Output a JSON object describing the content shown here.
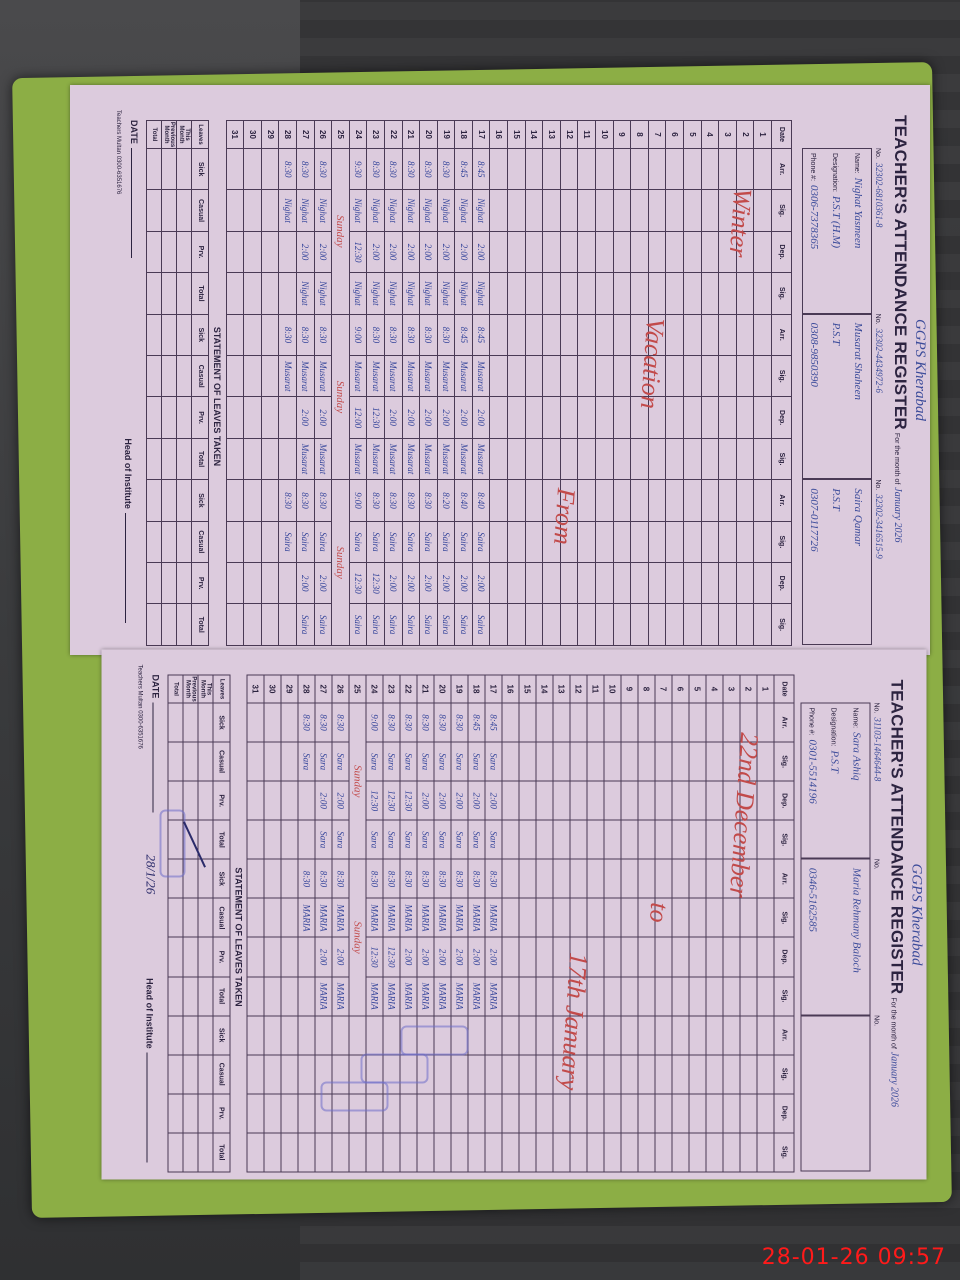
{
  "pages": [
    {
      "school": "GGPS Kherabad",
      "title": "TEACHER'S ATTENDANCE REGISTER",
      "month_label": "For the month of",
      "month": "January 2026",
      "labels": {
        "no": "No.",
        "name": "Name:",
        "designation": "Designation:",
        "phone": "Phone #:"
      },
      "teachers": [
        {
          "no": "32302-6810361-8",
          "name": "Nighat Yasmeen",
          "designation": "P.S.T (H.M)",
          "phone": "0306-7378365"
        },
        {
          "no": "32302-4434972-6",
          "name": "Musarat Shaheen",
          "designation": "P.S.T",
          "phone": "0308-9850390"
        },
        {
          "no": "32302-3416515-9",
          "name": "Saira Qamar",
          "designation": "P.S.T",
          "phone": "0307-0117726"
        }
      ],
      "columns": {
        "date": "Date",
        "cols": [
          "Arr.",
          "Sig.",
          "Dep.",
          "Sig."
        ]
      },
      "dates": [
        "1",
        "2",
        "3",
        "4",
        "5",
        "6",
        "7",
        "8",
        "9",
        "10",
        "11",
        "12",
        "13",
        "14",
        "15",
        "16",
        "17",
        "18",
        "19",
        "20",
        "21",
        "22",
        "23",
        "24",
        "25",
        "26",
        "27",
        "28",
        "29",
        "30",
        "31"
      ],
      "entries": [
        {
          "d": "17",
          "e": [
            [
              "8:45",
              "Nighat",
              "2:00",
              "Nighat"
            ],
            [
              "8:45",
              "Musarat",
              "2:00",
              "Musarat"
            ],
            [
              "8:40",
              "Saira",
              "2:00",
              "Saira"
            ]
          ]
        },
        {
          "d": "18",
          "e": [
            [
              "8:45",
              "Nighat",
              "2:00",
              "Nighat"
            ],
            [
              "8:45",
              "Musarat",
              "2:00",
              "Musarat"
            ],
            [
              "8:40",
              "Saira",
              "2:00",
              "Saira"
            ]
          ]
        },
        {
          "d": "19",
          "e": [
            [
              "8:30",
              "Nighat",
              "2:00",
              "Nighat"
            ],
            [
              "8:30",
              "Musarat",
              "2:00",
              "Musarat"
            ],
            [
              "8:20",
              "Saira",
              "2:00",
              "Saira"
            ]
          ]
        },
        {
          "d": "20",
          "e": [
            [
              "8:30",
              "Nighat",
              "2:00",
              "Nighat"
            ],
            [
              "8:30",
              "Musarat",
              "2:00",
              "Musarat"
            ],
            [
              "8:30",
              "Saira",
              "2:00",
              "Saira"
            ]
          ]
        },
        {
          "d": "21",
          "e": [
            [
              "8:30",
              "Nighat",
              "2:00",
              "Nighat"
            ],
            [
              "8:30",
              "Musarat",
              "2:00",
              "Musarat"
            ],
            [
              "8:30",
              "Saira",
              "2:00",
              "Saira"
            ]
          ]
        },
        {
          "d": "22",
          "e": [
            [
              "8:30",
              "Nighat",
              "2:00",
              "Nighat"
            ],
            [
              "8:30",
              "Musarat",
              "2:00",
              "Musarat"
            ],
            [
              "8:30",
              "Saira",
              "2:00",
              "Saira"
            ]
          ]
        },
        {
          "d": "23",
          "e": [
            [
              "8:30",
              "Nighat",
              "2:00",
              "Nighat"
            ],
            [
              "8:30",
              "Musarat",
              "12:30",
              "Musarat"
            ],
            [
              "8:30",
              "Saira",
              "12:30",
              "Saira"
            ]
          ]
        },
        {
          "d": "24",
          "e": [
            [
              "9:30",
              "Nighat",
              "12:30",
              "Nighat"
            ],
            [
              "9:00",
              "Musarat",
              "12:00",
              "Musarat"
            ],
            [
              "9:00",
              "Saira",
              "12:30",
              "Saira"
            ]
          ]
        },
        {
          "d": "25",
          "e": [
            [
              "Sunday"
            ],
            [
              "Sunday"
            ],
            [
              "Sunday"
            ]
          ]
        },
        {
          "d": "26",
          "e": [
            [
              "8:30",
              "Nighat",
              "2:00",
              "Nighat"
            ],
            [
              "8:30",
              "Musarat",
              "2:00",
              "Musarat"
            ],
            [
              "8:30",
              "Saira",
              "2:00",
              "Saira"
            ]
          ]
        },
        {
          "d": "27",
          "e": [
            [
              "8:30",
              "Nighat",
              "2:00",
              "Nighat"
            ],
            [
              "8:30",
              "Musarat",
              "2:00",
              "Musarat"
            ],
            [
              "8:30",
              "Saira",
              "2:00",
              "Saira"
            ]
          ]
        },
        {
          "d": "28",
          "e": [
            [
              "8:30",
              "Nighat",
              "",
              ""
            ],
            [
              "8:30",
              "Musarat",
              "",
              ""
            ],
            [
              "8:30",
              "Saira",
              "",
              ""
            ]
          ]
        }
      ],
      "vacation_note": [
        "Winter",
        "Vacation",
        "From"
      ],
      "statement_title": "STATEMENT OF LEAVES TAKEN",
      "leaves": {
        "rows": [
          "Leaves",
          "This Month",
          "Previous Month",
          "Total"
        ],
        "cols": [
          "Sick",
          "Casual",
          "Prv.",
          "Total"
        ]
      },
      "footer": {
        "date": "DATE",
        "head": "Head of Institute",
        "printer": "Teachers Multan 0300-6351676"
      }
    },
    {
      "school": "GGPS Kherabad",
      "title": "TEACHER'S ATTENDANCE REGISTER",
      "month_label": "For the month of",
      "month": "January 2026",
      "labels": {
        "no": "No.",
        "name": "Name:",
        "designation": "Designation:",
        "phone": "Phone #:"
      },
      "teachers": [
        {
          "no": "31103-1464644-8",
          "name": "Sara Ashiq",
          "designation": "P.S.T",
          "phone": "0301-5514196"
        },
        {
          "no": "",
          "name": "Maria Rehmany Baloch",
          "designation": "",
          "phone": "0346-5162585"
        },
        {
          "no": "",
          "name": "",
          "designation": "",
          "phone": ""
        }
      ],
      "columns": {
        "date": "Date",
        "cols": [
          "Arr.",
          "Sig.",
          "Dep.",
          "Sig."
        ]
      },
      "dates": [
        "1",
        "2",
        "3",
        "4",
        "5",
        "6",
        "7",
        "8",
        "9",
        "10",
        "11",
        "12",
        "13",
        "14",
        "15",
        "16",
        "17",
        "18",
        "19",
        "20",
        "21",
        "22",
        "23",
        "24",
        "25",
        "26",
        "27",
        "28",
        "29",
        "30",
        "31"
      ],
      "entries": [
        {
          "d": "17",
          "e": [
            [
              "8:45",
              "Sara",
              "2:00",
              "Sara"
            ],
            [
              "8:30",
              "MARIA",
              "2:00",
              "MARIA"
            ]
          ]
        },
        {
          "d": "18",
          "e": [
            [
              "8:45",
              "Sara",
              "2:00",
              "Sara"
            ],
            [
              "8:30",
              "MARIA",
              "2:00",
              "MARIA"
            ]
          ]
        },
        {
          "d": "19",
          "e": [
            [
              "8:30",
              "Sara",
              "2:00",
              "Sara"
            ],
            [
              "8:30",
              "MARIA",
              "2:00",
              "MARIA"
            ]
          ]
        },
        {
          "d": "20",
          "e": [
            [
              "8:30",
              "Sara",
              "2:00",
              "Sara"
            ],
            [
              "8:30",
              "MARIA",
              "2:00",
              "MARIA"
            ]
          ]
        },
        {
          "d": "21",
          "e": [
            [
              "8:30",
              "Sara",
              "2:00",
              "Sara"
            ],
            [
              "8:30",
              "MARIA",
              "2:00",
              "MARIA"
            ]
          ]
        },
        {
          "d": "22",
          "e": [
            [
              "8:30",
              "Sara",
              "12:30",
              "Sara"
            ],
            [
              "8:30",
              "MARIA",
              "2:00",
              "MARIA"
            ]
          ]
        },
        {
          "d": "23",
          "e": [
            [
              "8:30",
              "Sara",
              "12:30",
              "Sara"
            ],
            [
              "8:30",
              "MARIA",
              "12:30",
              "MARIA"
            ]
          ]
        },
        {
          "d": "24",
          "e": [
            [
              "9:00",
              "Sara",
              "12:30",
              "Sara"
            ],
            [
              "8:30",
              "MARIA",
              "12:30",
              "MARIA"
            ]
          ]
        },
        {
          "d": "25",
          "e": [
            [
              "Sunday"
            ],
            [
              "Sunday"
            ]
          ]
        },
        {
          "d": "26",
          "e": [
            [
              "8:30",
              "Sara",
              "2:00",
              "Sara"
            ],
            [
              "8:30",
              "MARIA",
              "2:00",
              "MARIA"
            ]
          ]
        },
        {
          "d": "27",
          "e": [
            [
              "8:30",
              "Sara",
              "2:00",
              "Sara"
            ],
            [
              "8:30",
              "MARIA",
              "2:00",
              "MARIA"
            ]
          ]
        },
        {
          "d": "28",
          "e": [
            [
              "8:30",
              "Sara",
              "",
              ""
            ],
            [
              "8:30",
              "MARIA",
              "",
              ""
            ]
          ]
        }
      ],
      "vacation_note": [
        "22nd December",
        "to",
        "17th January"
      ],
      "statement_title": "STATEMENT OF LEAVES TAKEN",
      "leaves": {
        "rows": [
          "Leaves",
          "This Month",
          "Previous Month",
          "Total"
        ],
        "cols": [
          "Sick",
          "Casual",
          "Prv.",
          "Total"
        ]
      },
      "footer": {
        "date": "DATE",
        "head": "Head of Institute",
        "printer": "Teachers Multan 0300-6351676"
      },
      "signed_date": "28/1/26"
    }
  ],
  "timestamp": "28-01-26  09:57",
  "colors": {
    "paper": "#dccbdd",
    "ink": "#3b4b9a",
    "red_ink": "#c24a4a",
    "folder": "#8cae45",
    "timestamp": "#ff1a1a"
  }
}
